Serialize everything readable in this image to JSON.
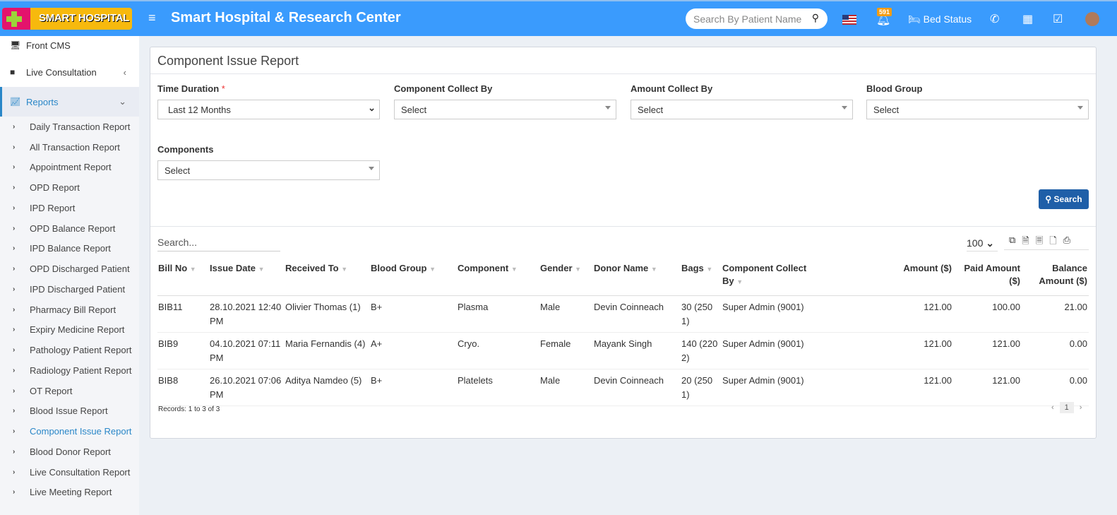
{
  "header": {
    "logo_text": "SMART HOSPITAL",
    "title": "Smart Hospital & Research Center",
    "search_placeholder": "Search By Patient Name",
    "notification_count": "591",
    "bed_status": "Bed Status",
    "bg": "#3a9bfd"
  },
  "sidebar": {
    "top": [
      {
        "label": "Front CMS"
      },
      {
        "label": "Live Consultation"
      },
      {
        "label": "Reports"
      }
    ],
    "reports": [
      "Daily Transaction Report",
      "All Transaction Report",
      "Appointment Report",
      "OPD Report",
      "IPD Report",
      "OPD Balance Report",
      "IPD Balance Report",
      "OPD Discharged Patient",
      "IPD Discharged Patient",
      "Pharmacy Bill Report",
      "Expiry Medicine Report",
      "Pathology Patient Report",
      "Radiology Patient Report",
      "OT Report",
      "Blood Issue Report",
      "Component Issue Report",
      "Blood Donor Report",
      "Live Consultation Report",
      "Live Meeting Report"
    ],
    "active": "Component Issue Report"
  },
  "page": {
    "title": "Component Issue Report",
    "filters": {
      "time_duration": {
        "label": "Time Duration",
        "required": "*",
        "value": "Last 12 Months"
      },
      "component_collect_by": {
        "label": "Component Collect By",
        "value": "Select"
      },
      "amount_collect_by": {
        "label": "Amount Collect By",
        "value": "Select"
      },
      "blood_group": {
        "label": "Blood Group",
        "value": "Select"
      },
      "components": {
        "label": "Components",
        "value": "Select"
      }
    },
    "search_button": "Search"
  },
  "table": {
    "search_placeholder": "Search...",
    "page_size": "100",
    "columns": [
      "Bill No",
      "Issue Date",
      "Received To",
      "Blood Group",
      "Component",
      "Gender",
      "Donor Name",
      "Bags",
      "Component Collect By",
      "Amount ($)",
      "Paid Amount ($)",
      "Balance Amount ($)"
    ],
    "rows": [
      [
        "BIB11",
        "28.10.2021 12:40 PM",
        "Olivier Thomas (1)",
        "B+",
        "Plasma",
        "Male",
        "Devin Coinneach",
        "30 (250 1)",
        "Super Admin (9001)",
        "121.00",
        "100.00",
        "21.00"
      ],
      [
        "BIB9",
        "04.10.2021 07:11 PM",
        "Maria Fernandis (4)",
        "A+",
        "Cryo.",
        "Female",
        "Mayank Singh",
        "140 (220 2)",
        "Super Admin (9001)",
        "121.00",
        "121.00",
        "0.00"
      ],
      [
        "BIB8",
        "26.10.2021 07:06 PM",
        "Aditya Namdeo (5)",
        "B+",
        "Platelets",
        "Male",
        "Devin Coinneach",
        "20 (250 1)",
        "Super Admin (9001)",
        "121.00",
        "121.00",
        "0.00"
      ]
    ],
    "records": "Records: 1 to 3 of 3",
    "current_page": "1"
  }
}
